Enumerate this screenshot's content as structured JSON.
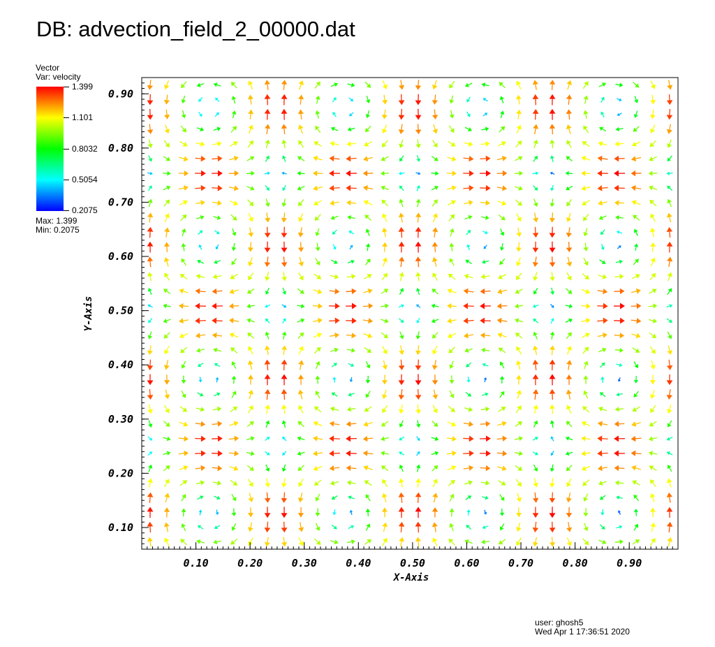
{
  "title": "DB: advection_field_2_00000.dat",
  "legend": {
    "plot_type": "Vector",
    "variable": "Var: velocity",
    "max_text": "Max:  1.399",
    "min_text": "Min:  0.2075",
    "ticks": [
      "1.399",
      "1.101",
      "0.8032",
      "0.5054",
      "0.2075"
    ],
    "colors": [
      "#ff0000",
      "#ffff00",
      "#00ff00",
      "#00ffff",
      "#0000ff"
    ]
  },
  "user_info": {
    "user": "user: ghosh5",
    "timestamp": "Wed Apr  1 17:36:51 2020"
  },
  "chart_data": {
    "type": "vector",
    "xlabel": "X-Axis",
    "ylabel": "Y-Axis",
    "xlim": [
      0.0,
      0.99
    ],
    "ylim": [
      0.06,
      0.93
    ],
    "x_ticks": [
      "0.10",
      "0.20",
      "0.30",
      "0.40",
      "0.50",
      "0.60",
      "0.70",
      "0.80",
      "0.90"
    ],
    "y_ticks": [
      "0.10",
      "0.20",
      "0.30",
      "0.40",
      "0.50",
      "0.60",
      "0.70",
      "0.80",
      "0.90"
    ],
    "variable": "velocity",
    "magnitude_range": [
      0.2075,
      1.399
    ],
    "field": "periodic vortex array, period 0.5 in x and y, sampled on a 32x32 grid",
    "grid": {
      "nx": 32,
      "ny": 32
    }
  }
}
